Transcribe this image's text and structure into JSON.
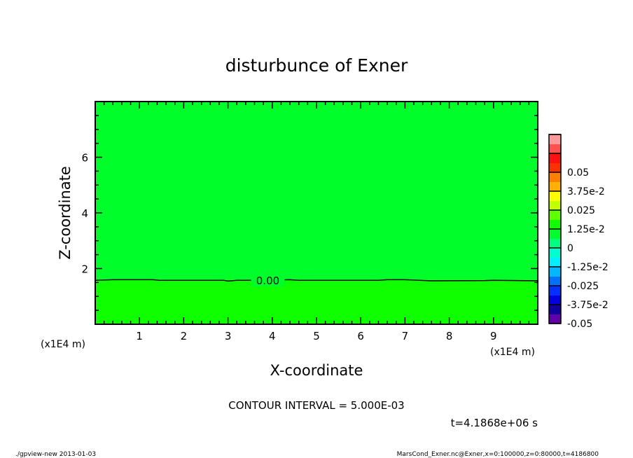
{
  "chart_data": {
    "type": "heatmap",
    "title": "disturbunce of Exner",
    "xlabel": "X-coordinate",
    "ylabel": "Z-coordinate",
    "x_unit_label": "(x1E4 m)",
    "y_unit_label": "(x1E4 m)",
    "xlim": [
      0,
      10
    ],
    "ylim": [
      0,
      8
    ],
    "x_ticks": [
      "1",
      "2",
      "3",
      "4",
      "5",
      "6",
      "7",
      "8",
      "9"
    ],
    "y_ticks": [
      "2",
      "4",
      "6"
    ],
    "regions": [
      {
        "range": [
          -0.005,
          0
        ],
        "zmin": 1.6,
        "zmax": 8,
        "color": "#00ff2a"
      },
      {
        "range": [
          0,
          0.005
        ],
        "zmin": 0,
        "zmax": 1.6,
        "color": "#10ff00"
      }
    ],
    "contours": [
      {
        "level": 0,
        "label": "0.00",
        "label_x": 3.9,
        "points": [
          [
            0,
            1.58
          ],
          [
            0.4,
            1.6
          ],
          [
            1.3,
            1.6
          ],
          [
            1.45,
            1.58
          ],
          [
            2.9,
            1.58
          ],
          [
            3.0,
            1.55
          ],
          [
            3.2,
            1.58
          ],
          [
            3.4,
            1.58
          ],
          [
            4.4,
            1.6
          ],
          [
            4.6,
            1.58
          ],
          [
            6.4,
            1.58
          ],
          [
            6.6,
            1.6
          ],
          [
            7.0,
            1.6
          ],
          [
            7.6,
            1.56
          ],
          [
            8.8,
            1.57
          ],
          [
            9.0,
            1.58
          ],
          [
            10,
            1.56
          ]
        ]
      }
    ],
    "colorbar": {
      "levels": [
        -0.05,
        -0.045,
        -0.04,
        -0.035,
        -0.03,
        -0.025,
        -0.02,
        -0.015,
        -0.01,
        -0.005,
        0,
        0.005,
        0.01,
        0.015,
        0.02,
        0.025,
        0.03,
        0.035,
        0.04,
        0.045,
        0.05
      ],
      "colors": [
        "#6000a8",
        "#1000a0",
        "#0000e0",
        "#0030ff",
        "#0070ff",
        "#00b8ff",
        "#00f0ff",
        "#00ffd0",
        "#00ff80",
        "#00ff2a",
        "#10ff00",
        "#60ff00",
        "#c0ff00",
        "#ffff00",
        "#ffb000",
        "#ff8000",
        "#ff3000",
        "#ff1010",
        "#ff5050",
        "#ff9a9a"
      ],
      "tick_labels": [
        "-0.05",
        "-3.75e-2",
        "-0.025",
        "-1.25e-2",
        "0",
        "1.25e-2",
        "0.025",
        "3.75e-2",
        "0.05"
      ]
    },
    "contour_interval": "CONTOUR INTERVAL = 5.000E-03",
    "time_label": "t=4.1868e+06 s",
    "footer_left": "./gpview-new  2013-01-03",
    "footer_right": "MarsCond_Exner.nc@Exner,x=0:100000,z=0:80000,t=4186800"
  }
}
